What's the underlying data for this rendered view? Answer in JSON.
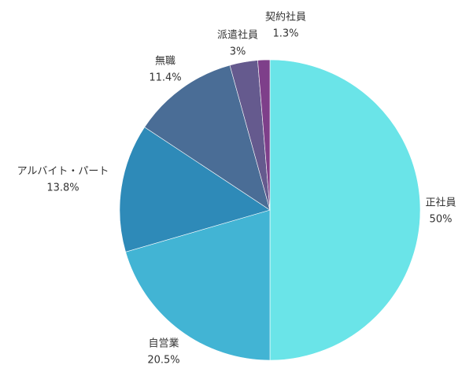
{
  "chart_data": {
    "type": "pie",
    "categories": [
      "正社員",
      "自営業",
      "アルバイト・パート",
      "無職",
      "派遣社員",
      "契約社員"
    ],
    "values": [
      50,
      20.5,
      13.8,
      11.4,
      3,
      1.3
    ],
    "value_labels": [
      "50%",
      "20.5%",
      "13.8%",
      "11.4%",
      "3%",
      "1.3%"
    ],
    "colors": [
      "#6ae4e8",
      "#42b4d4",
      "#2e8ab8",
      "#4a6d96",
      "#655a8e",
      "#7e3f8a"
    ]
  }
}
